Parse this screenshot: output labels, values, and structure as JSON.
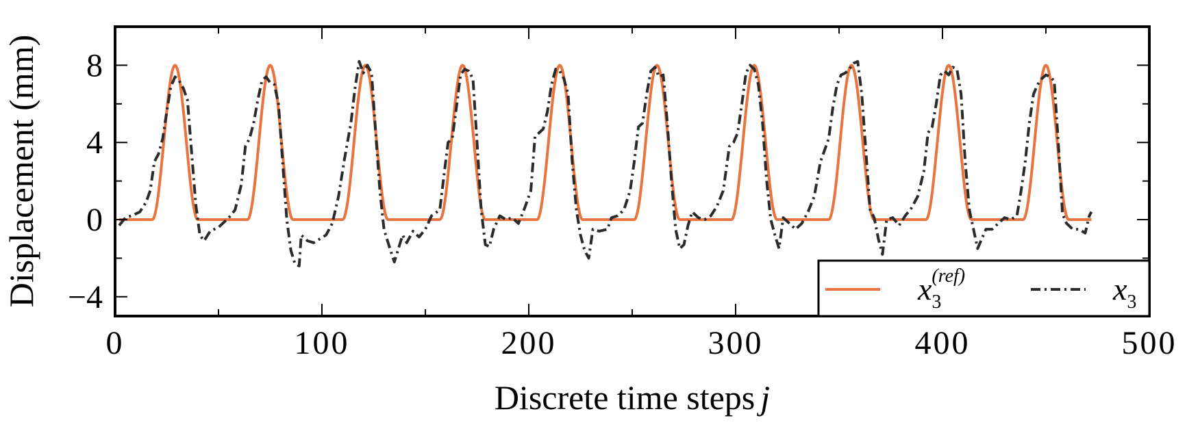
{
  "chart_data": {
    "type": "line",
    "xlabel": "Discrete time steps",
    "xlabel_var": "j",
    "ylabel": "Displacement (mm)",
    "xlim": [
      0,
      500
    ],
    "ylim": [
      -5,
      10
    ],
    "xticks": [
      0,
      100,
      200,
      300,
      400,
      500
    ],
    "xticks_minor": [
      50,
      150,
      250,
      350,
      450
    ],
    "yticks": [
      -4,
      0,
      4,
      8
    ],
    "yticks_minor": [
      -2,
      2,
      6,
      10
    ],
    "ytick_labels": [
      "−4",
      "0",
      "4",
      "8"
    ],
    "grid": false,
    "legend_position": "bottom-right",
    "series": [
      {
        "name": "x3(ref)",
        "legend_main": "x",
        "legend_sub": "3",
        "legend_sup": "(ref)",
        "style": "solid",
        "color": "#e8743f",
        "x_start": 2,
        "x_end": 472,
        "baseline": 0,
        "amplitude": 8,
        "pulse_halfwidth": 11,
        "peak_x": [
          29,
          75,
          121,
          168,
          215,
          262,
          309,
          356,
          403,
          450
        ]
      },
      {
        "name": "x3",
        "legend_main": "x",
        "legend_sub": "3",
        "style": "dash-dot",
        "color": "#2b2b2b",
        "points": [
          [
            2,
            -0.3
          ],
          [
            5,
            0.1
          ],
          [
            8,
            0.2
          ],
          [
            12,
            0.4
          ],
          [
            15,
            0.9
          ],
          [
            17,
            1.5
          ],
          [
            19,
            3.0
          ],
          [
            21,
            3.4
          ],
          [
            23,
            4.2
          ],
          [
            25,
            5.6
          ],
          [
            27,
            6.9
          ],
          [
            29,
            7.4
          ],
          [
            31,
            7.2
          ],
          [
            33,
            6.8
          ],
          [
            35,
            6.2
          ],
          [
            37,
            3.5
          ],
          [
            39,
            0.8
          ],
          [
            41,
            -0.8
          ],
          [
            43,
            -1.1
          ],
          [
            46,
            -0.6
          ],
          [
            50,
            -0.4
          ],
          [
            55,
            0.1
          ],
          [
            58,
            0.5
          ],
          [
            61,
            1.8
          ],
          [
            63,
            3.8
          ],
          [
            65,
            4.2
          ],
          [
            67,
            5.0
          ],
          [
            69,
            6.2
          ],
          [
            71,
            7.2
          ],
          [
            73,
            7.4
          ],
          [
            75,
            7.1
          ],
          [
            77,
            7.0
          ],
          [
            79,
            6.0
          ],
          [
            81,
            3.0
          ],
          [
            83,
            0.0
          ],
          [
            85,
            -1.6
          ],
          [
            87,
            -2.3
          ],
          [
            89,
            -2.4
          ],
          [
            90,
            -0.8
          ],
          [
            93,
            -1.1
          ],
          [
            96,
            -1.2
          ],
          [
            99,
            -1.0
          ],
          [
            102,
            -0.8
          ],
          [
            105,
            -0.2
          ],
          [
            108,
            1.2
          ],
          [
            111,
            3.2
          ],
          [
            114,
            5.0
          ],
          [
            116,
            6.8
          ],
          [
            118,
            8.2
          ],
          [
            120,
            7.6
          ],
          [
            122,
            8.0
          ],
          [
            124,
            7.6
          ],
          [
            126,
            4.5
          ],
          [
            128,
            1.5
          ],
          [
            130,
            -0.5
          ],
          [
            132,
            -1.2
          ],
          [
            135,
            -2.2
          ],
          [
            137,
            -1.5
          ],
          [
            139,
            -0.8
          ],
          [
            141,
            -1.2
          ],
          [
            144,
            -0.6
          ],
          [
            147,
            -0.9
          ],
          [
            150,
            -0.5
          ],
          [
            153,
            0.2
          ],
          [
            157,
            0.5
          ],
          [
            159,
            2.3
          ],
          [
            161,
            4.0
          ],
          [
            163,
            4.2
          ],
          [
            165,
            5.8
          ],
          [
            167,
            7.5
          ],
          [
            169,
            7.8
          ],
          [
            171,
            7.7
          ],
          [
            173,
            7.3
          ],
          [
            175,
            4.0
          ],
          [
            177,
            0.5
          ],
          [
            179,
            -1.3
          ],
          [
            181,
            -1.4
          ],
          [
            183,
            -0.5
          ],
          [
            186,
            0.2
          ],
          [
            189,
            0.0
          ],
          [
            192,
            0.1
          ],
          [
            195,
            -0.2
          ],
          [
            198,
            0.6
          ],
          [
            201,
            1.5
          ],
          [
            203,
            4.3
          ],
          [
            205,
            4.5
          ],
          [
            207,
            4.7
          ],
          [
            209,
            5.6
          ],
          [
            211,
            7.0
          ],
          [
            213,
            7.8
          ],
          [
            215,
            7.7
          ],
          [
            217,
            7.3
          ],
          [
            219,
            6.5
          ],
          [
            221,
            3.0
          ],
          [
            223,
            0.5
          ],
          [
            225,
            -0.8
          ],
          [
            227,
            -1.6
          ],
          [
            229,
            -2.0
          ],
          [
            231,
            -0.5
          ],
          [
            234,
            -0.6
          ],
          [
            238,
            -0.5
          ],
          [
            240,
            0.1
          ],
          [
            243,
            0.2
          ],
          [
            246,
            0.5
          ],
          [
            249,
            1.5
          ],
          [
            251,
            3.0
          ],
          [
            253,
            4.8
          ],
          [
            255,
            5.0
          ],
          [
            257,
            6.5
          ],
          [
            259,
            7.7
          ],
          [
            261,
            7.9
          ],
          [
            263,
            7.4
          ],
          [
            265,
            7.5
          ],
          [
            267,
            5.0
          ],
          [
            269,
            2.0
          ],
          [
            271,
            -0.5
          ],
          [
            273,
            -1.5
          ],
          [
            275,
            -1.3
          ],
          [
            277,
            -0.3
          ],
          [
            279,
            0.4
          ],
          [
            282,
            0.1
          ],
          [
            285,
            0.0
          ],
          [
            288,
            0.2
          ],
          [
            291,
            0.7
          ],
          [
            294,
            1.5
          ],
          [
            297,
            3.8
          ],
          [
            299,
            4.0
          ],
          [
            301,
            4.5
          ],
          [
            303,
            6.0
          ],
          [
            305,
            7.6
          ],
          [
            307,
            8.0
          ],
          [
            309,
            7.8
          ],
          [
            311,
            7.0
          ],
          [
            313,
            5.0
          ],
          [
            315,
            2.0
          ],
          [
            317,
            0.0
          ],
          [
            319,
            -0.8
          ],
          [
            321,
            -1.5
          ],
          [
            323,
            0.1
          ],
          [
            326,
            -0.2
          ],
          [
            329,
            -0.5
          ],
          [
            332,
            -0.2
          ],
          [
            335,
            0.4
          ],
          [
            338,
            1.2
          ],
          [
            341,
            3.0
          ],
          [
            343,
            3.6
          ],
          [
            345,
            4.2
          ],
          [
            347,
            5.8
          ],
          [
            349,
            7.0
          ],
          [
            351,
            7.5
          ],
          [
            353,
            7.6
          ],
          [
            355,
            7.8
          ],
          [
            357,
            8.1
          ],
          [
            359,
            8.2
          ],
          [
            361,
            6.5
          ],
          [
            363,
            3.5
          ],
          [
            365,
            0.5
          ],
          [
            367,
            0.1
          ],
          [
            369,
            -1.0
          ],
          [
            371,
            -1.8
          ],
          [
            373,
            0.0
          ],
          [
            376,
            0.1
          ],
          [
            379,
            -0.3
          ],
          [
            382,
            0.2
          ],
          [
            385,
            0.6
          ],
          [
            388,
            1.2
          ],
          [
            391,
            2.5
          ],
          [
            393,
            4.5
          ],
          [
            395,
            4.8
          ],
          [
            397,
            6.0
          ],
          [
            399,
            7.5
          ],
          [
            401,
            7.7
          ],
          [
            403,
            7.5
          ],
          [
            405,
            7.9
          ],
          [
            407,
            7.8
          ],
          [
            409,
            6.5
          ],
          [
            411,
            3.0
          ],
          [
            413,
            0.5
          ],
          [
            415,
            -0.5
          ],
          [
            417,
            -1.5
          ],
          [
            419,
            -1.0
          ],
          [
            421,
            -0.5
          ],
          [
            424,
            -0.5
          ],
          [
            427,
            -0.2
          ],
          [
            430,
            0.1
          ],
          [
            433,
            0.0
          ],
          [
            436,
            0.2
          ],
          [
            438,
            1.5
          ],
          [
            440,
            3.0
          ],
          [
            442,
            5.0
          ],
          [
            444,
            6.5
          ],
          [
            446,
            7.0
          ],
          [
            448,
            7.3
          ],
          [
            450,
            7.5
          ],
          [
            452,
            7.4
          ],
          [
            454,
            7.2
          ],
          [
            456,
            4.0
          ],
          [
            458,
            0.3
          ],
          [
            460,
            -0.2
          ],
          [
            463,
            -0.5
          ],
          [
            466,
            -0.5
          ],
          [
            469,
            -0.7
          ],
          [
            471,
            0.2
          ],
          [
            472,
            0.4
          ]
        ]
      }
    ]
  }
}
